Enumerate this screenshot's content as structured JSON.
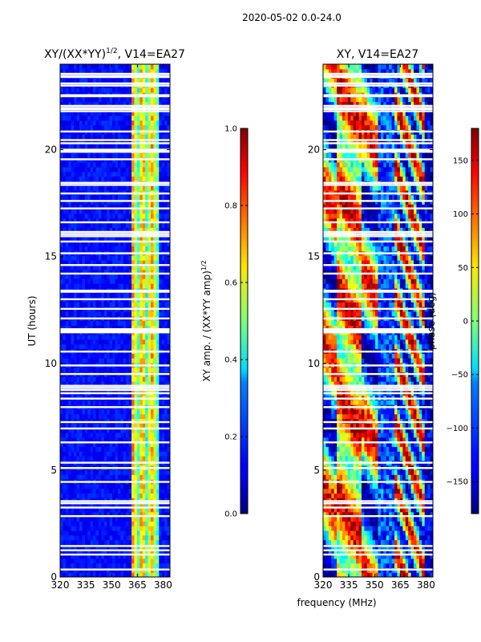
{
  "suptitle": "2020-05-02 0.0-24.0",
  "chart_data": [
    {
      "type": "heatmap",
      "title": "XY/(XX*YY)",
      "title_sup": "1/2",
      "title_rest": ", V14=EA27",
      "xlabel": "",
      "ylabel": "UT (hours)",
      "xlim": [
        320,
        384
      ],
      "ylim": [
        0,
        24
      ],
      "xticks": [
        320,
        335,
        350,
        365,
        380
      ],
      "yticks": [
        0,
        5,
        10,
        15,
        20
      ],
      "colorbar": {
        "label": "XY amp. / (XX*YY amp)",
        "label_sup": "1/2",
        "range": [
          0.0,
          1.0
        ],
        "ticks": [
          "0.0",
          "0.2",
          "0.4",
          "0.6",
          "0.8",
          "1.0"
        ],
        "colormap": "jet"
      }
    },
    {
      "type": "heatmap",
      "title": "XY, V14=EA27",
      "xlabel": "frequency (MHz)",
      "ylabel": "",
      "xlim": [
        320,
        384
      ],
      "ylim": [
        0,
        24
      ],
      "xticks": [
        320,
        335,
        350,
        365,
        380
      ],
      "yticks": [
        0,
        5,
        10,
        15,
        20
      ],
      "colorbar": {
        "label": "phase (deg)",
        "range": [
          -180,
          180
        ],
        "ticks": [
          "150",
          "100",
          "50",
          "0",
          "−50",
          "−100",
          "−150"
        ],
        "colormap": "jet"
      }
    }
  ],
  "flagged_hours": [
    0.35,
    1.05,
    1.25,
    1.45,
    2.85,
    3.25,
    3.45,
    3.55,
    4.45,
    5.1,
    5.35,
    6.3,
    6.95,
    7.25,
    7.95,
    8.35,
    8.6,
    8.75,
    8.85,
    8.95,
    9.5,
    9.9,
    10.55,
    11.45,
    11.5,
    11.55,
    11.6,
    12.1,
    12.55,
    13.0,
    13.35,
    13.4,
    14.2,
    14.6,
    15.15,
    15.7,
    15.95,
    16.05,
    16.15,
    16.6,
    17.25,
    17.6,
    17.95,
    18.35,
    18.45,
    19.55,
    19.9,
    19.95,
    20.0,
    20.3,
    20.45,
    20.85,
    21.8,
    21.9,
    21.95,
    22.05,
    22.5,
    22.55,
    23.0,
    23.1,
    23.4,
    23.45,
    23.55
  ]
}
